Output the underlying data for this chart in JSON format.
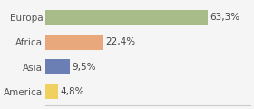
{
  "categories": [
    "America",
    "Asia",
    "Africa",
    "Europa"
  ],
  "values": [
    4.8,
    9.5,
    22.4,
    63.3
  ],
  "labels": [
    "4,8%",
    "9,5%",
    "22,4%",
    "63,3%"
  ],
  "bar_colors": [
    "#f0d060",
    "#6b7fb5",
    "#e8a87c",
    "#a8bc8a"
  ],
  "background_color": "#f5f5f5",
  "xlim": [
    0,
    80
  ],
  "bar_height": 0.62,
  "label_fontsize": 7.5,
  "tick_fontsize": 7.5
}
